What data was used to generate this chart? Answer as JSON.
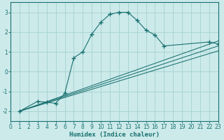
{
  "xlabel": "Humidex (Indice chaleur)",
  "xlim": [
    0,
    23
  ],
  "ylim": [
    -2.5,
    3.5
  ],
  "yticks": [
    -2,
    -1,
    0,
    1,
    2,
    3
  ],
  "xticks": [
    0,
    1,
    2,
    3,
    4,
    5,
    6,
    7,
    8,
    9,
    10,
    11,
    12,
    13,
    14,
    15,
    16,
    17,
    18,
    19,
    20,
    21,
    22,
    23
  ],
  "bg_color": "#cceaea",
  "line_color": "#1a7070",
  "grid_color": "#aad4d4",
  "curve_x": [
    1,
    3,
    4,
    5,
    6,
    7,
    8,
    9,
    10,
    11,
    12,
    13,
    14,
    15,
    16,
    17,
    22,
    23
  ],
  "curve_y": [
    -2.0,
    -1.5,
    -1.55,
    -1.6,
    -1.1,
    0.7,
    1.0,
    1.9,
    2.5,
    2.9,
    3.0,
    3.0,
    2.6,
    2.1,
    1.85,
    1.3,
    1.5,
    1.4
  ],
  "line1_x": [
    1,
    23
  ],
  "line1_y": [
    -2.0,
    1.55
  ],
  "line2_x": [
    1,
    23
  ],
  "line2_y": [
    -2.0,
    1.05
  ],
  "line3_x": [
    1,
    23
  ],
  "line3_y": [
    -2.0,
    1.3
  ],
  "xlabel_fontsize": 6.5,
  "tick_fontsize": 5.5
}
